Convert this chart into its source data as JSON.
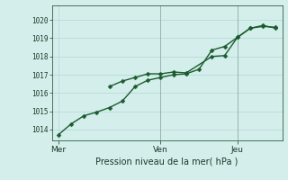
{
  "title": "",
  "xlabel": "Pression niveau de la mer( hPa )",
  "background_color": "#d4eeeb",
  "grid_color": "#b8dcd8",
  "line_color_dark": "#1a5c2e",
  "line_color_light": "#2d7a4a",
  "xtick_labels": [
    "Mer",
    "Ven",
    "Jeu"
  ],
  "xtick_positions": [
    0,
    8,
    14
  ],
  "ytick_values": [
    1014,
    1015,
    1016,
    1017,
    1018,
    1019,
    1020
  ],
  "ylim": [
    1013.4,
    1020.8
  ],
  "xlim": [
    -0.5,
    17.5
  ],
  "series1_x": [
    0,
    1,
    2,
    3,
    4,
    5,
    6,
    7,
    8,
    9,
    10,
    11,
    12,
    13,
    14,
    15,
    16,
    17
  ],
  "series1_y": [
    1013.7,
    1014.3,
    1014.75,
    1014.95,
    1015.2,
    1015.55,
    1016.35,
    1016.7,
    1016.85,
    1017.0,
    1017.05,
    1017.3,
    1018.35,
    1018.55,
    1019.05,
    1019.55,
    1019.65,
    1019.6
  ],
  "series2_x": [
    4,
    5,
    6,
    7,
    8,
    9,
    10,
    12,
    13,
    14,
    15,
    16,
    17
  ],
  "series2_y": [
    1016.35,
    1016.65,
    1016.85,
    1017.05,
    1017.05,
    1017.15,
    1017.1,
    1018.0,
    1018.05,
    1019.05,
    1019.55,
    1019.7,
    1019.55
  ],
  "vline_positions": [
    8,
    14
  ],
  "marker_size": 2.5,
  "line_width": 1.0
}
